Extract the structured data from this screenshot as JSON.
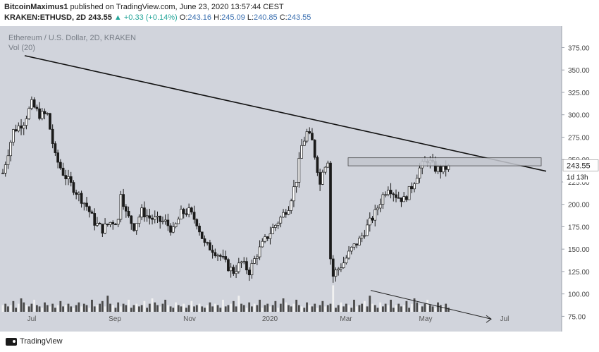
{
  "header": {
    "author": "BitcoinMaximus1",
    "published": "published on TradingView.com, June 23, 2020 13:57:44 CEST",
    "symbol": "KRAKEN:ETHUSD, 2D",
    "last": "243.55",
    "change_arrow": "▲",
    "change": "+0.33 (+0.14%)",
    "o_label": "O:",
    "o_val": "243.16",
    "h_label": "H:",
    "h_val": "245.09",
    "l_label": "L:",
    "l_val": "240.85",
    "c_label": "C:",
    "c_val": "243.55"
  },
  "chart_data": {
    "type": "candlestick",
    "title": "Ethereum / U.S. Dollar, 2D, KRAKEN",
    "volume_label": "Vol (20)",
    "ylim": [
      58,
      399
    ],
    "yticks": [
      75,
      100,
      125,
      150,
      175,
      200,
      225,
      250,
      275,
      300,
      325,
      350,
      375
    ],
    "ytick_labels": [
      "75.00",
      "100.00",
      "125.00",
      "150.00",
      "175.00",
      "200.00",
      "225.00",
      "250.00",
      "275.00",
      "300.00",
      "325.00",
      "350.00",
      "375.00"
    ],
    "x_labels": [
      "Jul",
      "Sep",
      "Nov",
      "2020",
      "Mar",
      "May",
      "Jul"
    ],
    "current_price": "243.55",
    "countdown": "1d 13h",
    "price_path": [
      [
        0,
        235
      ],
      [
        4,
        282
      ],
      [
        8,
        292
      ],
      [
        11,
        312
      ],
      [
        14,
        300
      ],
      [
        17,
        300
      ],
      [
        20,
        253
      ],
      [
        23,
        235
      ],
      [
        26,
        222
      ],
      [
        29,
        210
      ],
      [
        32,
        198
      ],
      [
        35,
        180
      ],
      [
        38,
        172
      ],
      [
        41,
        180
      ],
      [
        44,
        182
      ],
      [
        45,
        215
      ],
      [
        47,
        190
      ],
      [
        50,
        175
      ],
      [
        53,
        192
      ],
      [
        56,
        185
      ],
      [
        59,
        182
      ],
      [
        62,
        180
      ],
      [
        65,
        170
      ],
      [
        68,
        190
      ],
      [
        71,
        192
      ],
      [
        74,
        180
      ],
      [
        77,
        155
      ],
      [
        80,
        150
      ],
      [
        83,
        142
      ],
      [
        86,
        130
      ],
      [
        88,
        125
      ],
      [
        91,
        135
      ],
      [
        94,
        125
      ],
      [
        97,
        145
      ],
      [
        100,
        160
      ],
      [
        103,
        173
      ],
      [
        106,
        185
      ],
      [
        109,
        198
      ],
      [
        112,
        228
      ],
      [
        114,
        265
      ],
      [
        116,
        280
      ],
      [
        118,
        270
      ],
      [
        120,
        240
      ],
      [
        121,
        222
      ],
      [
        122,
        240
      ],
      [
        124,
        250
      ],
      [
        125,
        140
      ],
      [
        126,
        120
      ],
      [
        127,
        125
      ],
      [
        130,
        135
      ],
      [
        133,
        150
      ],
      [
        136,
        160
      ],
      [
        139,
        175
      ],
      [
        142,
        190
      ],
      [
        145,
        210
      ],
      [
        147,
        220
      ],
      [
        150,
        210
      ],
      [
        153,
        205
      ],
      [
        156,
        220
      ],
      [
        159,
        240
      ],
      [
        162,
        250
      ],
      [
        165,
        240
      ],
      [
        168,
        238
      ],
      [
        170,
        243.55
      ]
    ],
    "volume_pattern": [
      5,
      6,
      4,
      5,
      8,
      3,
      6,
      10,
      7,
      5,
      4,
      6,
      9,
      5,
      4,
      3,
      7,
      5,
      4,
      6,
      3,
      5,
      8,
      4,
      5,
      6,
      4,
      3,
      5,
      7,
      4,
      6,
      5,
      3,
      9,
      4,
      5,
      6,
      8,
      4,
      12,
      6,
      5,
      3,
      7,
      4,
      6,
      5,
      9,
      3
    ],
    "resistance_line": {
      "from": [
        0,
        366
      ],
      "to": [
        187,
        237
      ]
    },
    "support_zone": {
      "x_from": 119,
      "x_to": 187,
      "y_from": 243,
      "y_to": 252
    },
    "volume_trend_arrow": {
      "from": [
        127,
        104
      ],
      "to": [
        170,
        72
      ]
    }
  },
  "footer": {
    "brand": "TradingView"
  }
}
